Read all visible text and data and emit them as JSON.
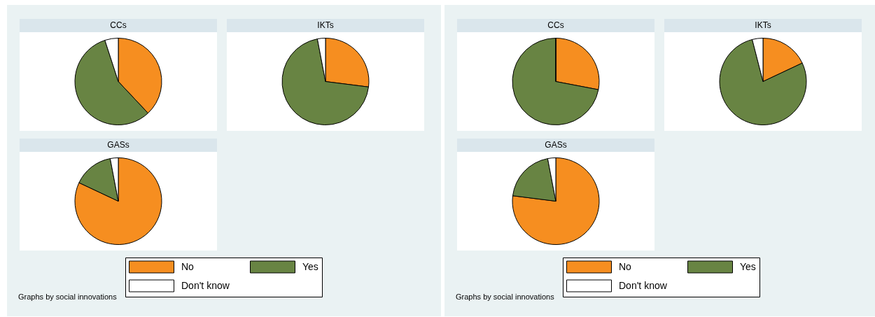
{
  "chart_data": [
    {
      "type": "pie",
      "title": "CCs",
      "categories": [
        null,
        null,
        null
      ],
      "values": [
        38,
        57,
        5
      ],
      "colors": [
        "#f68e20",
        "#688443",
        "#ffffff"
      ],
      "legend": false
    },
    {
      "type": "pie",
      "title": "IKTs",
      "categories": [
        null,
        null,
        null
      ],
      "values": [
        27,
        70,
        3
      ],
      "colors": [
        "#f68e20",
        "#688443",
        "#ffffff"
      ],
      "legend": false
    },
    {
      "type": "pie",
      "title": "GASs",
      "categories": [
        "No",
        "Yes",
        "Don't know"
      ],
      "values": [
        82,
        15,
        3
      ],
      "colors": [
        "#f68e20",
        "#688443",
        "#ffffff"
      ],
      "legend": "bottom",
      "annotations": [
        "Graphs by social innovations"
      ]
    },
    {
      "type": "pie",
      "title": "CCs",
      "categories": [
        null,
        null,
        null
      ],
      "values": [
        28,
        72,
        0
      ],
      "colors": [
        "#f68e20",
        "#688443",
        "#ffffff"
      ],
      "legend": false
    },
    {
      "type": "pie",
      "title": "IKTs",
      "categories": [
        null,
        null,
        null
      ],
      "values": [
        18,
        78,
        4
      ],
      "colors": [
        "#f68e20",
        "#688443",
        "#ffffff"
      ],
      "legend": false
    },
    {
      "type": "pie",
      "title": "GASs",
      "categories": [
        "No",
        "Yes",
        "Don't know"
      ],
      "values": [
        77,
        20,
        3
      ],
      "colors": [
        "#f68e20",
        "#688443",
        "#ffffff"
      ],
      "legend": "bottom",
      "annotations": [
        "Graphs by social innovations"
      ]
    }
  ]
}
